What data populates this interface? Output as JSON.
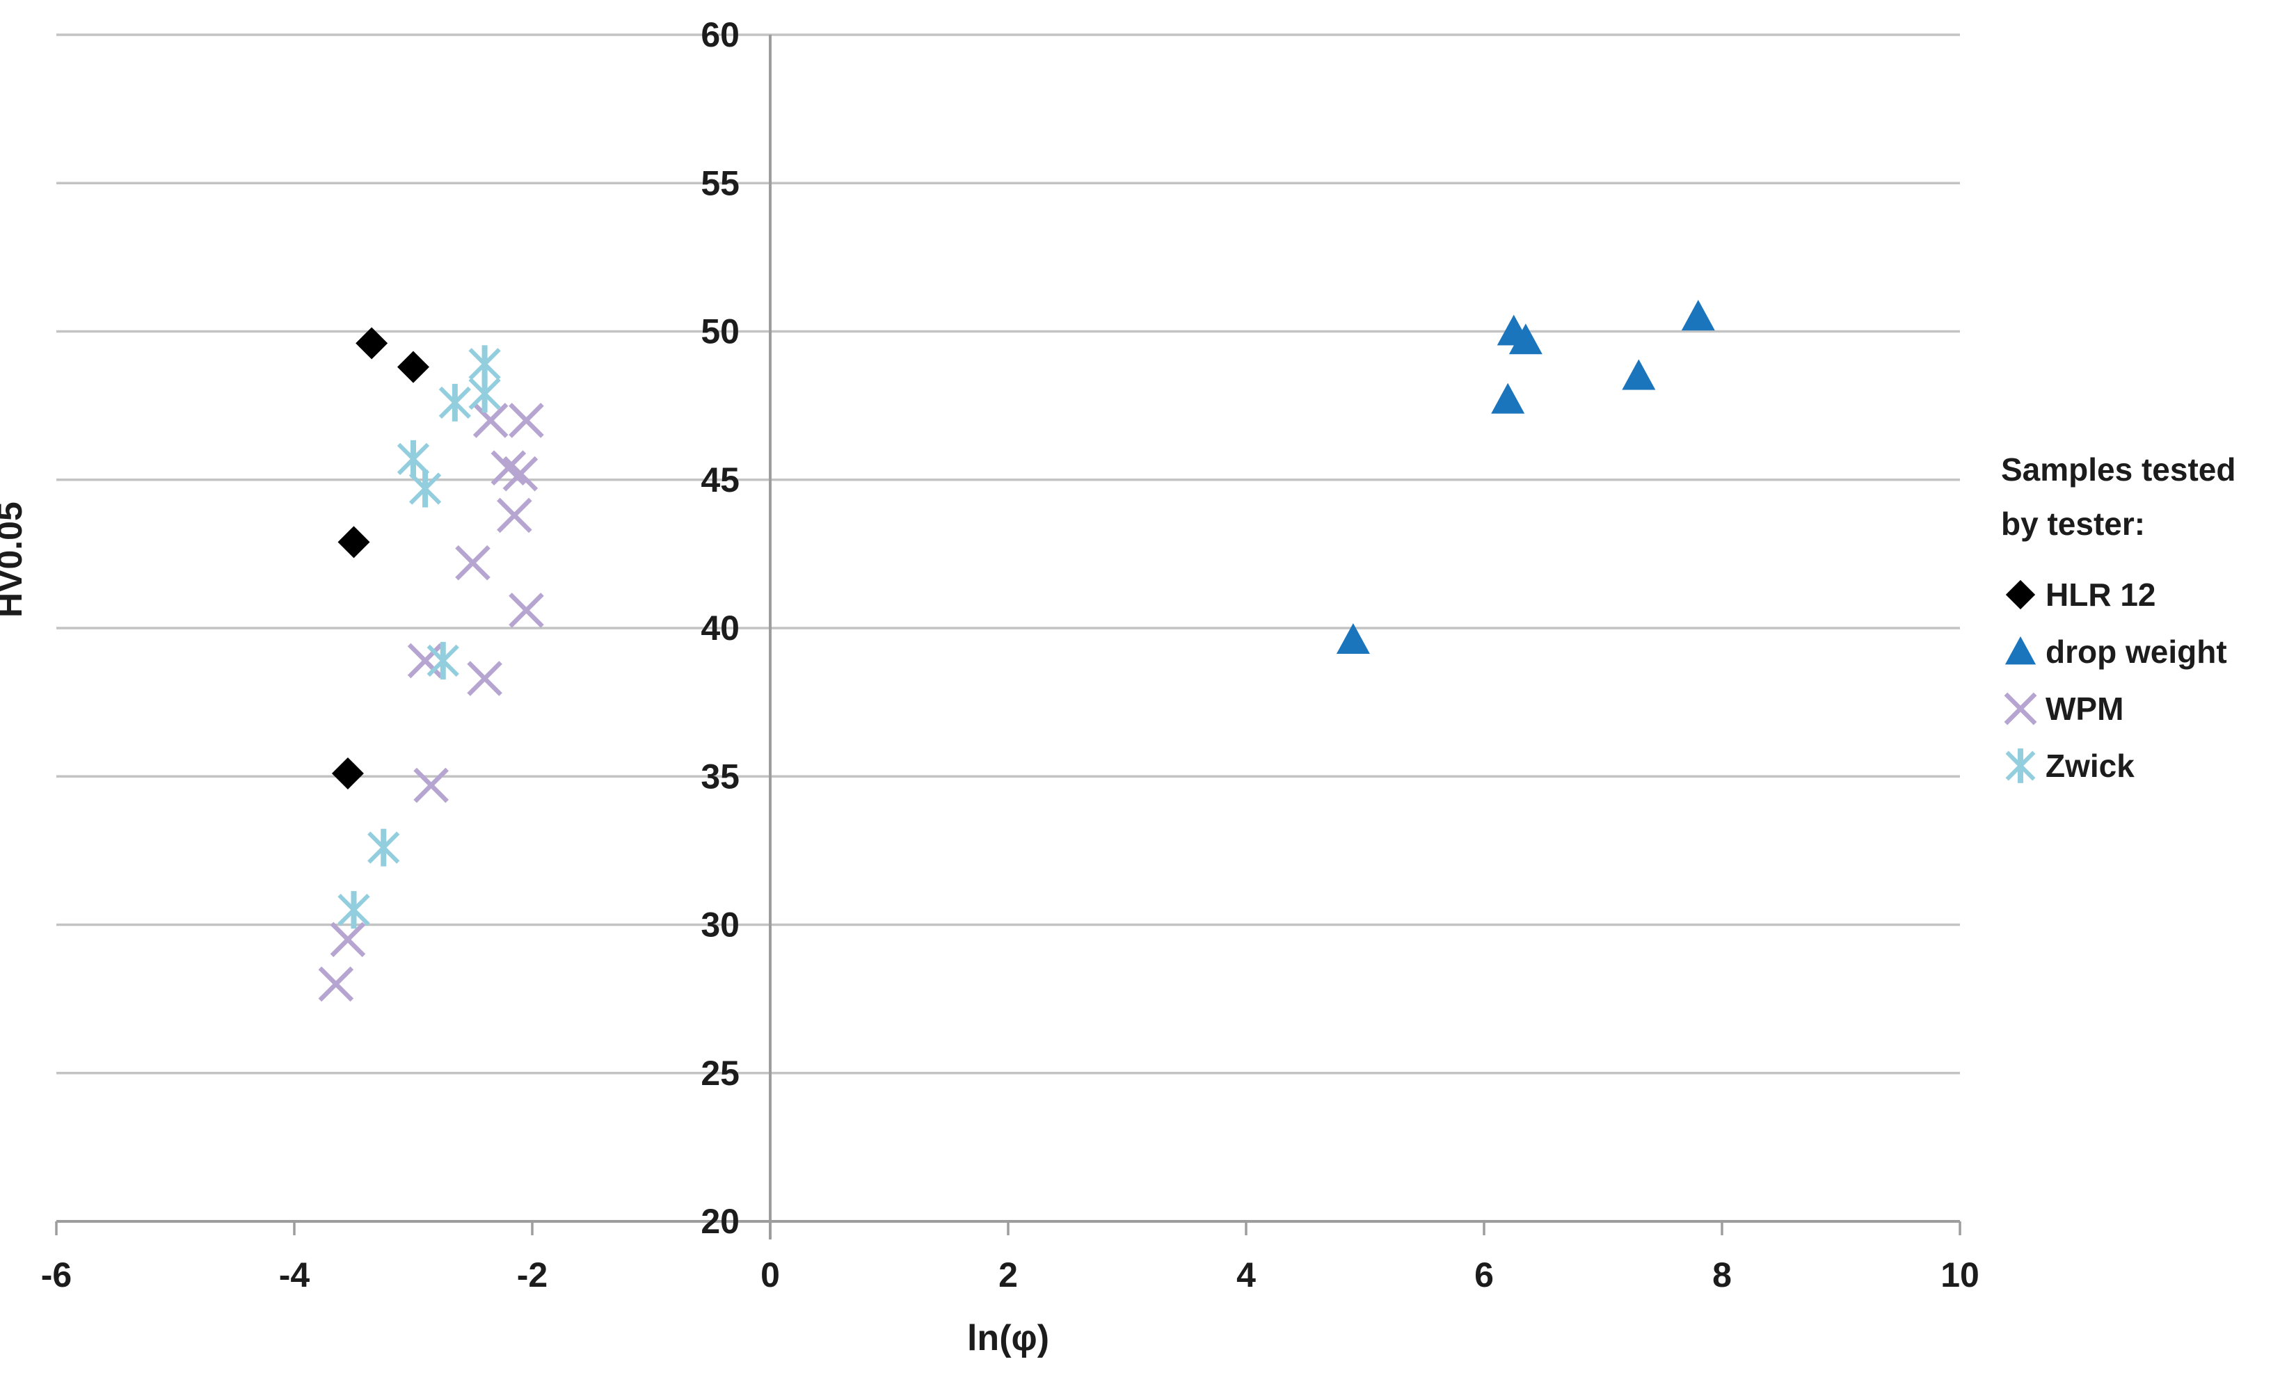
{
  "chart_data": {
    "type": "scatter",
    "title": "",
    "xlabel": "ln(φ)",
    "ylabel": "HV0.05",
    "xlim": [
      -6,
      10
    ],
    "ylim": [
      20,
      60
    ],
    "x_ticks": [
      -6,
      -4,
      -2,
      0,
      2,
      4,
      6,
      8,
      10
    ],
    "y_ticks": [
      60,
      55,
      50,
      45,
      40,
      35,
      30,
      25,
      20
    ],
    "grid": "horizontal-only",
    "gridline_color": "#c3c3c3",
    "axis_line_color": "#9d9d9d",
    "tick_label_color": "#1c1c1c",
    "legend_position": "right",
    "series": [
      {
        "name": "HLR 12",
        "marker": "diamond",
        "color": "#000000",
        "points": [
          [
            -3.35,
            49.6
          ],
          [
            -3.0,
            48.8
          ],
          [
            -3.5,
            42.9
          ],
          [
            -3.55,
            35.1
          ]
        ]
      },
      {
        "name": "drop weight",
        "marker": "triangle",
        "color": "#1b75bc",
        "points": [
          [
            6.25,
            50.0
          ],
          [
            6.35,
            49.7
          ],
          [
            6.2,
            47.7
          ],
          [
            7.3,
            48.5
          ],
          [
            7.8,
            50.5
          ],
          [
            4.9,
            39.6
          ]
        ]
      },
      {
        "name": "WPM",
        "marker": "x",
        "color": "#b6a5d1",
        "points": [
          [
            -2.35,
            47.0
          ],
          [
            -2.05,
            47.0
          ],
          [
            -2.2,
            45.4
          ],
          [
            -2.1,
            45.2
          ],
          [
            -2.15,
            43.8
          ],
          [
            -2.5,
            42.2
          ],
          [
            -2.05,
            40.6
          ],
          [
            -2.9,
            38.9
          ],
          [
            -2.4,
            38.3
          ],
          [
            -2.85,
            34.7
          ],
          [
            -3.55,
            29.5
          ],
          [
            -3.65,
            28.0
          ]
        ]
      },
      {
        "name": "Zwick",
        "marker": "star",
        "color": "#93cede",
        "points": [
          [
            -2.4,
            48.9
          ],
          [
            -2.4,
            47.9
          ],
          [
            -2.65,
            47.6
          ],
          [
            -3.0,
            45.7
          ],
          [
            -2.9,
            44.7
          ],
          [
            -2.75,
            38.9
          ],
          [
            -3.25,
            32.6
          ],
          [
            -3.5,
            30.5
          ]
        ]
      }
    ]
  },
  "legend": {
    "title": "Samples tested by tester:"
  }
}
